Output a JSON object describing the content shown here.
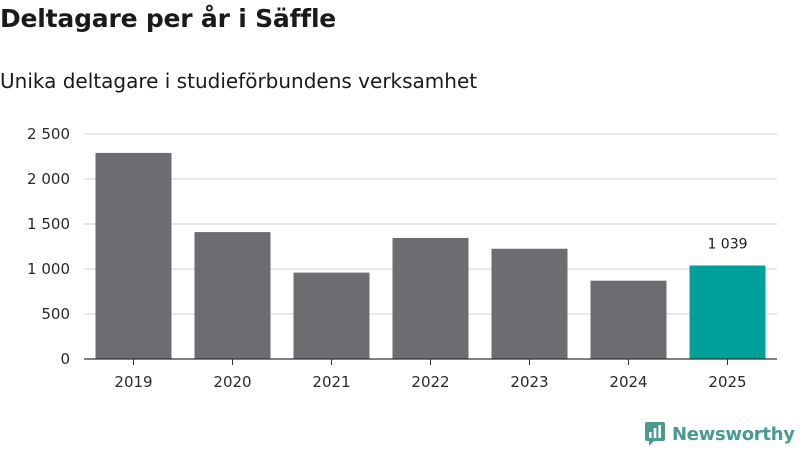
{
  "title": "Deltagare per år i Säffle",
  "subtitle": "Unika deltagare i studieförbundens verksamhet",
  "brand": {
    "name": "Newsworthy",
    "icon": "newsworthy-logo-icon",
    "color": "#4a9a94"
  },
  "colors": {
    "bar": "#6d6c71",
    "highlight": "#00a19a",
    "grid": "#d9d9d9",
    "axis": "#333333"
  },
  "chart_data": {
    "type": "bar",
    "categories": [
      "2019",
      "2020",
      "2021",
      "2022",
      "2023",
      "2024",
      "2025"
    ],
    "values": [
      2290,
      1410,
      960,
      1345,
      1225,
      870,
      1039
    ],
    "highlight_index": 6,
    "data_labels": [
      {
        "index": 6,
        "text": "1 039"
      }
    ],
    "y_ticks": [
      0,
      500,
      1000,
      1500,
      2000,
      2500
    ],
    "y_tick_labels": [
      "0",
      "500",
      "1 000",
      "1 500",
      "2 000",
      "2 500"
    ],
    "ylim": [
      0,
      2500
    ],
    "grid": true,
    "legend": "none",
    "xlabel": "",
    "ylabel": ""
  }
}
